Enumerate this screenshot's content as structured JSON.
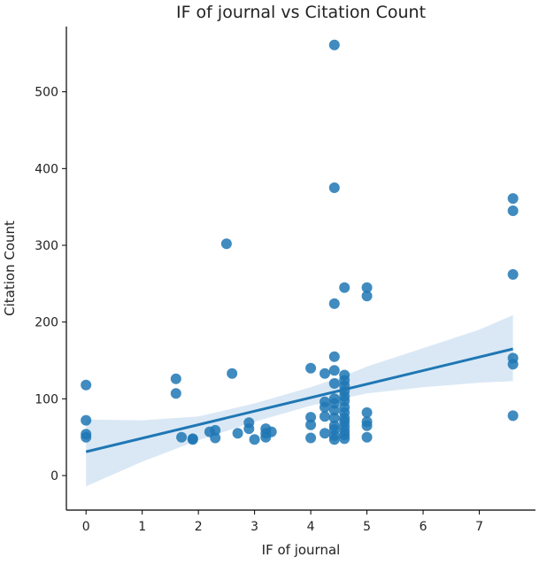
{
  "chart_data": {
    "type": "scatter",
    "title": "IF of journal vs Citation Count",
    "xlabel": "IF of journal",
    "ylabel": "Citation Count",
    "xlim": [
      -0.35,
      8.0
    ],
    "ylim": [
      -45,
      585
    ],
    "xticks": [
      0,
      1,
      2,
      3,
      4,
      5,
      6,
      7
    ],
    "yticks": [
      0,
      100,
      200,
      300,
      400,
      500
    ],
    "colors": {
      "points": "#1f77b4",
      "regression_line": "#1f77b4",
      "confidence_band": "#c6dbef"
    },
    "points": [
      {
        "x": 0,
        "y": 118
      },
      {
        "x": 0,
        "y": 72
      },
      {
        "x": 0,
        "y": 54
      },
      {
        "x": 0,
        "y": 50
      },
      {
        "x": 1.6,
        "y": 126
      },
      {
        "x": 1.6,
        "y": 107
      },
      {
        "x": 1.7,
        "y": 50
      },
      {
        "x": 1.9,
        "y": 48
      },
      {
        "x": 1.9,
        "y": 47
      },
      {
        "x": 2.2,
        "y": 57
      },
      {
        "x": 2.3,
        "y": 59
      },
      {
        "x": 2.3,
        "y": 49
      },
      {
        "x": 2.5,
        "y": 302
      },
      {
        "x": 2.6,
        "y": 133
      },
      {
        "x": 2.7,
        "y": 55
      },
      {
        "x": 2.9,
        "y": 69
      },
      {
        "x": 2.9,
        "y": 61
      },
      {
        "x": 3.0,
        "y": 47
      },
      {
        "x": 3.2,
        "y": 61
      },
      {
        "x": 3.2,
        "y": 55
      },
      {
        "x": 3.2,
        "y": 50
      },
      {
        "x": 3.3,
        "y": 57
      },
      {
        "x": 4.0,
        "y": 140
      },
      {
        "x": 4.0,
        "y": 76
      },
      {
        "x": 4.0,
        "y": 66
      },
      {
        "x": 4.0,
        "y": 49
      },
      {
        "x": 4.25,
        "y": 133
      },
      {
        "x": 4.25,
        "y": 96
      },
      {
        "x": 4.25,
        "y": 89
      },
      {
        "x": 4.25,
        "y": 77
      },
      {
        "x": 4.25,
        "y": 55
      },
      {
        "x": 4.42,
        "y": 561
      },
      {
        "x": 4.42,
        "y": 375
      },
      {
        "x": 4.42,
        "y": 224
      },
      {
        "x": 4.42,
        "y": 155
      },
      {
        "x": 4.42,
        "y": 137
      },
      {
        "x": 4.42,
        "y": 120
      },
      {
        "x": 4.42,
        "y": 100
      },
      {
        "x": 4.42,
        "y": 94
      },
      {
        "x": 4.42,
        "y": 85
      },
      {
        "x": 4.42,
        "y": 75
      },
      {
        "x": 4.42,
        "y": 65
      },
      {
        "x": 4.42,
        "y": 60
      },
      {
        "x": 4.42,
        "y": 52
      },
      {
        "x": 4.42,
        "y": 47
      },
      {
        "x": 4.6,
        "y": 245
      },
      {
        "x": 4.6,
        "y": 131
      },
      {
        "x": 4.6,
        "y": 124
      },
      {
        "x": 4.6,
        "y": 117
      },
      {
        "x": 4.6,
        "y": 110
      },
      {
        "x": 4.6,
        "y": 103
      },
      {
        "x": 4.6,
        "y": 97
      },
      {
        "x": 4.6,
        "y": 89
      },
      {
        "x": 4.6,
        "y": 82
      },
      {
        "x": 4.6,
        "y": 75
      },
      {
        "x": 4.6,
        "y": 70
      },
      {
        "x": 4.6,
        "y": 64
      },
      {
        "x": 4.6,
        "y": 58
      },
      {
        "x": 4.6,
        "y": 53
      },
      {
        "x": 4.6,
        "y": 48
      },
      {
        "x": 5.0,
        "y": 245
      },
      {
        "x": 5.0,
        "y": 234
      },
      {
        "x": 5.0,
        "y": 82
      },
      {
        "x": 5.0,
        "y": 70
      },
      {
        "x": 5.0,
        "y": 65
      },
      {
        "x": 5.0,
        "y": 50
      },
      {
        "x": 7.6,
        "y": 361
      },
      {
        "x": 7.6,
        "y": 345
      },
      {
        "x": 7.6,
        "y": 262
      },
      {
        "x": 7.6,
        "y": 153
      },
      {
        "x": 7.6,
        "y": 145
      },
      {
        "x": 7.6,
        "y": 78
      }
    ],
    "regression": {
      "x_range": [
        0,
        7.6
      ],
      "start": 31,
      "end": 165,
      "ci_lower": [
        [
          0,
          -14
        ],
        [
          1,
          18
        ],
        [
          2,
          46
        ],
        [
          3,
          70
        ],
        [
          4,
          91
        ],
        [
          4.6,
          101
        ],
        [
          5,
          107
        ],
        [
          6,
          115
        ],
        [
          7,
          121
        ],
        [
          7.6,
          123
        ]
      ],
      "ci_upper": [
        [
          0,
          73
        ],
        [
          1,
          72
        ],
        [
          2,
          77
        ],
        [
          3,
          94
        ],
        [
          4,
          115
        ],
        [
          4.6,
          130
        ],
        [
          5,
          142
        ],
        [
          6,
          166
        ],
        [
          7,
          190
        ],
        [
          7.6,
          209
        ]
      ]
    },
    "grid": false
  }
}
